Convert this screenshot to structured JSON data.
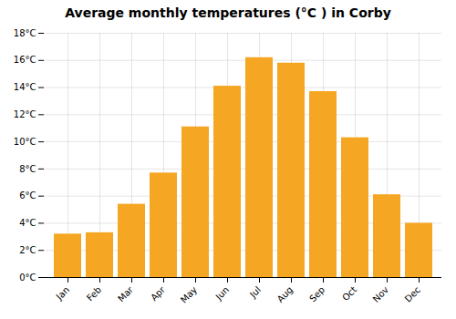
{
  "chart_data": {
    "type": "bar",
    "title": "Average monthly temperatures (°C ) in Corby",
    "categories": [
      "Jan",
      "Feb",
      "Mar",
      "Apr",
      "May",
      "Jun",
      "Jul",
      "Aug",
      "Sep",
      "Oct",
      "Nov",
      "Dec"
    ],
    "values": [
      3.2,
      3.3,
      5.4,
      7.7,
      11.1,
      14.1,
      16.2,
      15.8,
      13.7,
      10.3,
      6.1,
      4.0
    ],
    "color": "#F5A623",
    "ylim": [
      0,
      18
    ],
    "yticks": [
      {
        "value": 0,
        "label": "0°C"
      },
      {
        "value": 2,
        "label": "2°C"
      },
      {
        "value": 4,
        "label": "4°C"
      },
      {
        "value": 6,
        "label": "6°C"
      },
      {
        "value": 8,
        "label": "8°C"
      },
      {
        "value": 10,
        "label": "10°C"
      },
      {
        "value": 12,
        "label": "12°C"
      },
      {
        "value": 14,
        "label": "14°C"
      },
      {
        "value": 16,
        "label": "16°C"
      },
      {
        "value": 18,
        "label": "18°C"
      }
    ],
    "grid": true
  }
}
